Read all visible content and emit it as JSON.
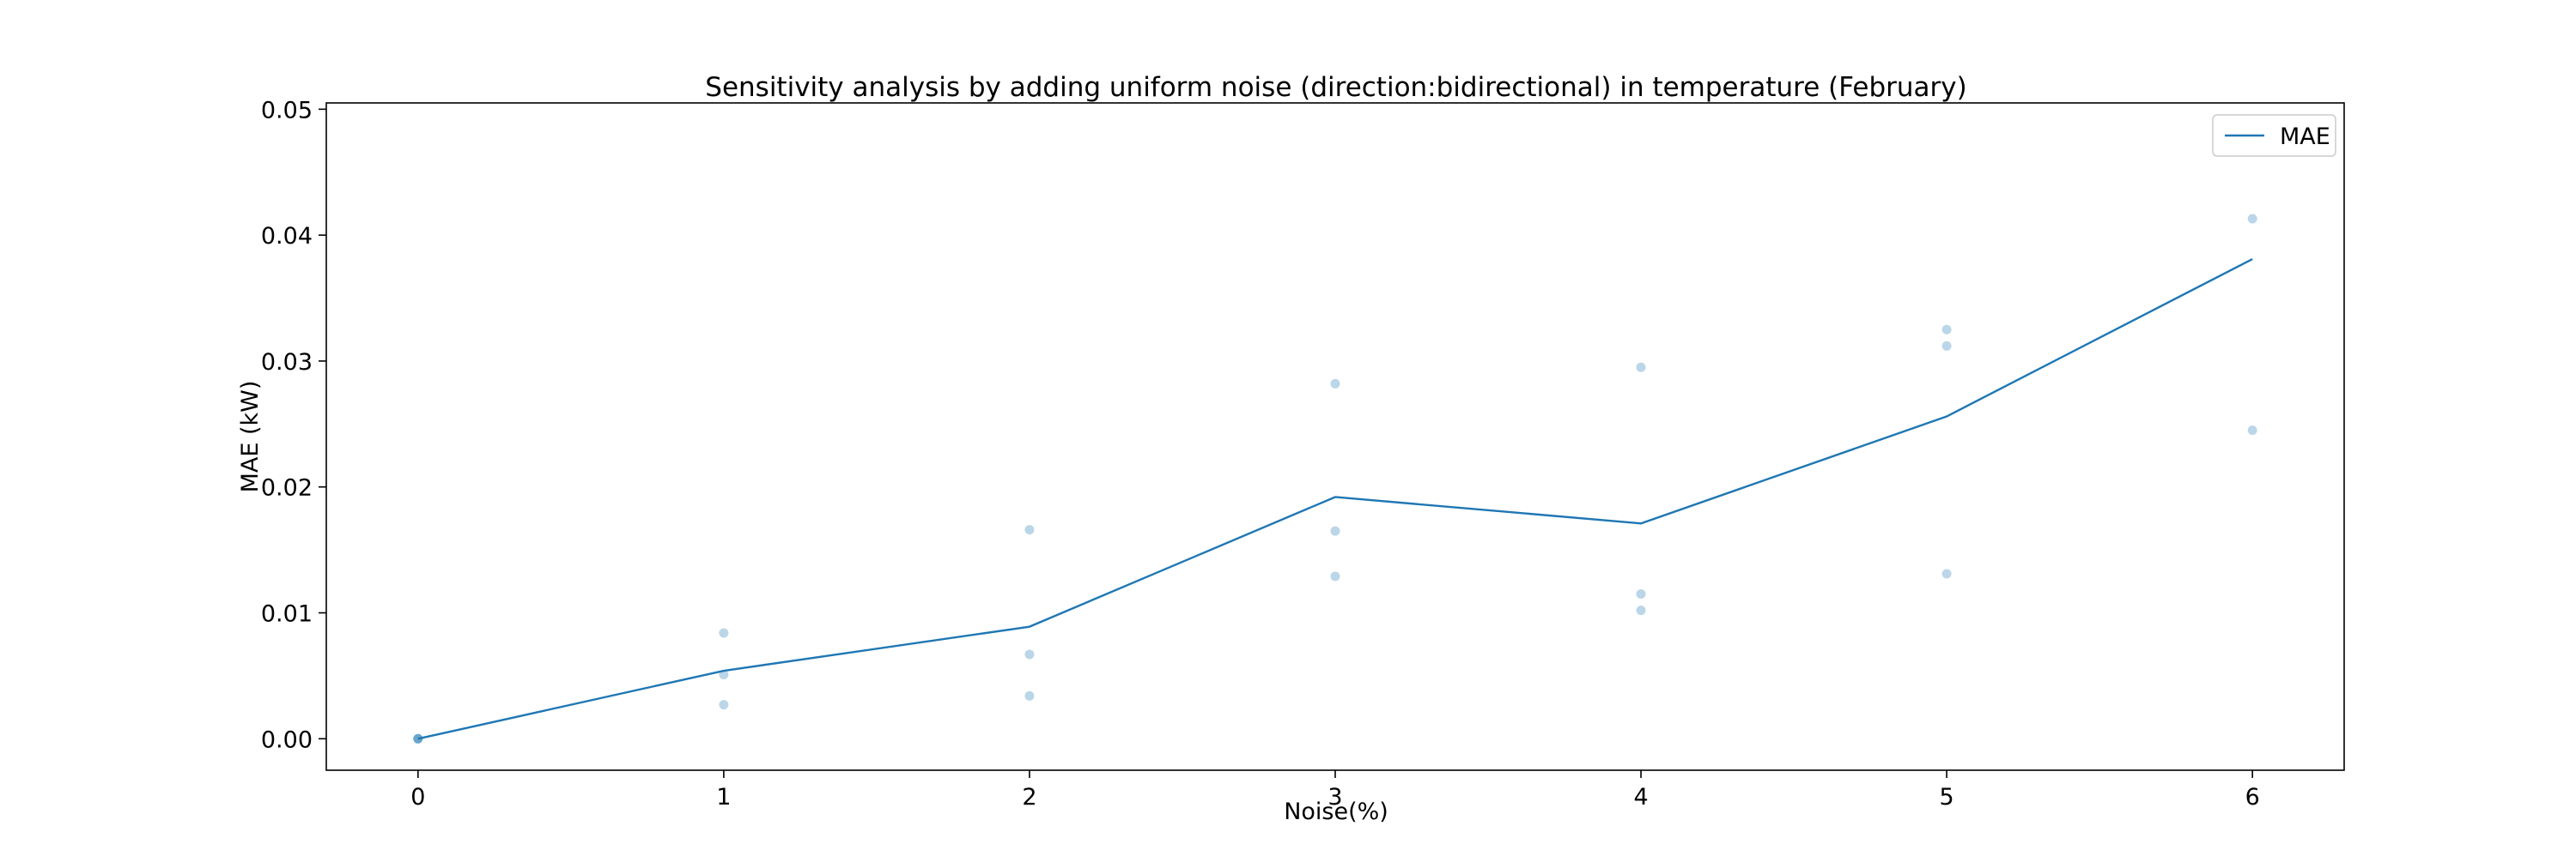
{
  "chart_data": {
    "type": "line",
    "title": "Sensitivity analysis by adding uniform noise (direction:bidirectional) in temperature (February)",
    "xlabel": "Noise(%)",
    "ylabel": "MAE (kW)",
    "xlim": [
      -0.3,
      6.3
    ],
    "ylim": [
      -0.0025,
      0.0505
    ],
    "x_ticks": [
      "0",
      "1",
      "2",
      "3",
      "4",
      "5",
      "6"
    ],
    "y_ticks": [
      "0.00",
      "0.01",
      "0.02",
      "0.03",
      "0.04",
      "0.05"
    ],
    "grid": false,
    "legend_position": "top-right",
    "series": [
      {
        "name": "MAE",
        "color": "#1f77b4",
        "x": [
          0,
          1,
          2,
          3,
          4,
          5,
          6
        ],
        "y": [
          0.0,
          0.0054,
          0.0089,
          0.0192,
          0.0171,
          0.0256,
          0.0381
        ]
      }
    ],
    "scatter": {
      "color": "#1f77b4",
      "opacity": 0.3,
      "points": [
        [
          0,
          0.0
        ],
        [
          0,
          0.0
        ],
        [
          0,
          0.0
        ],
        [
          1,
          0.0084
        ],
        [
          1,
          0.0051
        ],
        [
          1,
          0.0027
        ],
        [
          2,
          0.0166
        ],
        [
          2,
          0.0067
        ],
        [
          2,
          0.0034
        ],
        [
          3,
          0.0282
        ],
        [
          3,
          0.0165
        ],
        [
          3,
          0.0129
        ],
        [
          4,
          0.0295
        ],
        [
          4,
          0.0115
        ],
        [
          4,
          0.0102
        ],
        [
          5,
          0.0325
        ],
        [
          5,
          0.0312
        ],
        [
          5,
          0.0131
        ],
        [
          6,
          0.0413
        ],
        [
          6,
          0.0245
        ]
      ]
    }
  }
}
